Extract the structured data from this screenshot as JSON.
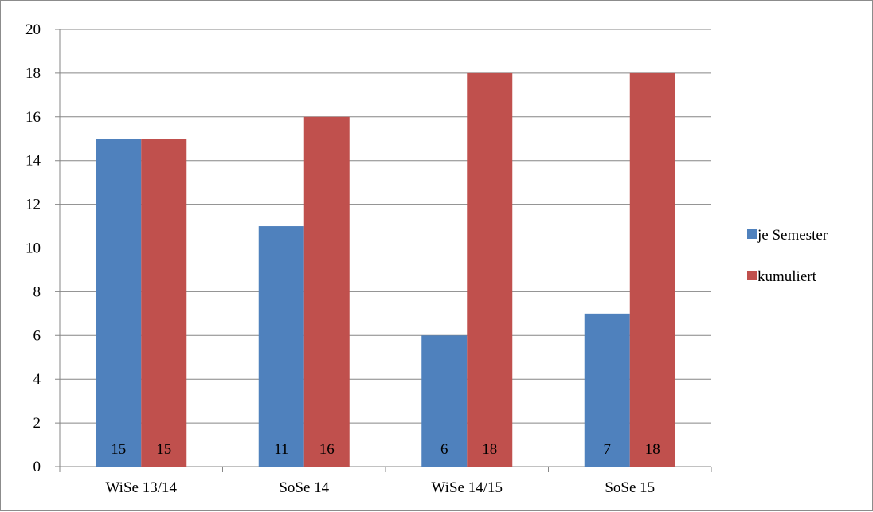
{
  "chart_data": {
    "type": "bar",
    "categories": [
      "WiSe 13/14",
      "SoSe 14",
      "WiSe 14/15",
      "SoSe 15"
    ],
    "series": [
      {
        "name": "je Semester",
        "values": [
          15,
          11,
          6,
          7
        ],
        "color": "#4F81BD"
      },
      {
        "name": "kumuliert",
        "values": [
          15,
          16,
          18,
          18
        ],
        "color": "#C0504D"
      }
    ],
    "yticks": [
      "0",
      "2",
      "4",
      "6",
      "8",
      "10",
      "12",
      "14",
      "16",
      "18",
      "20"
    ],
    "ylim": [
      0,
      20
    ],
    "grid": true,
    "legend_position": "right",
    "data_labels_position": "inside-base",
    "gridline_color": "#868686",
    "axis_color": "#868686"
  }
}
